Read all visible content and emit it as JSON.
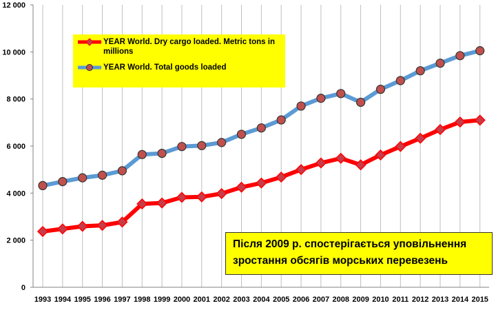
{
  "chart_data": {
    "type": "line",
    "categories": [
      "1993",
      "1994",
      "1995",
      "1996",
      "1997",
      "1998",
      "1999",
      "2000",
      "2001",
      "2002",
      "2003",
      "2004",
      "2005",
      "2006",
      "2007",
      "2008",
      "2009",
      "2010",
      "2011",
      "2012",
      "2013",
      "2014",
      "2015"
    ],
    "y_tick_labels": [
      "0",
      "2 000",
      "4 000",
      "6 000",
      "8 000",
      "10 000",
      "12 000"
    ],
    "ylim": [
      0,
      12000
    ],
    "grid": "vertical lines at each category",
    "legend_position": "top-left",
    "series": [
      {
        "name": "YEAR World. Dry cargo loaded.  Metric tons in millions",
        "color": "#ff0000",
        "marker_color": "#c93b48",
        "marker": "diamond",
        "values": [
          2370,
          2480,
          2590,
          2630,
          2770,
          3540,
          3580,
          3820,
          3840,
          3980,
          4250,
          4430,
          4680,
          5000,
          5280,
          5480,
          5200,
          5620,
          5980,
          6330,
          6700,
          7020,
          7100
        ]
      },
      {
        "name": "YEAR World. Total goods loaded",
        "color": "#5b9bd5",
        "marker_color": "#c0504d",
        "marker": "circle",
        "values": [
          4320,
          4490,
          4650,
          4760,
          4950,
          5640,
          5690,
          5980,
          6020,
          6150,
          6500,
          6770,
          7110,
          7700,
          8030,
          8230,
          7860,
          8410,
          8780,
          9200,
          9520,
          9840,
          10050
        ]
      }
    ],
    "annotation": "Після 2009 р. спостерігається уповільнення зростання обсягів морських перевезень"
  }
}
